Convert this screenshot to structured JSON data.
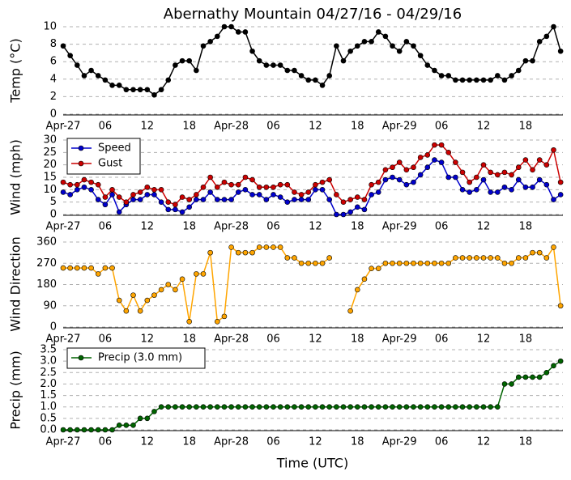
{
  "chart_data": [
    {
      "type": "line",
      "title": "Abernathy Mountain 04/27/16 - 04/29/16",
      "y_label": "Temp (°C)",
      "color": "#000000",
      "grid": true,
      "categories": [
        "Apr-27",
        null,
        null,
        null,
        null,
        null,
        "06",
        null,
        null,
        null,
        null,
        null,
        "12",
        null,
        null,
        null,
        null,
        null,
        "18",
        null,
        null,
        null,
        null,
        null,
        "Apr-28",
        null,
        null,
        null,
        null,
        null,
        "06",
        null,
        null,
        null,
        null,
        null,
        "12",
        null,
        null,
        null,
        null,
        null,
        "18",
        null,
        null,
        null,
        null,
        null,
        "Apr-29",
        null,
        null,
        null,
        null,
        null,
        "06",
        null,
        null,
        null,
        null,
        null,
        "12",
        null,
        null,
        null,
        null,
        null,
        "18",
        null,
        null,
        null,
        null,
        null
      ],
      "values": [
        7.8,
        6.7,
        5.6,
        4.4,
        5.0,
        4.4,
        3.9,
        3.3,
        3.3,
        2.8,
        2.8,
        2.8,
        2.8,
        2.2,
        2.8,
        3.9,
        5.6,
        6.1,
        6.1,
        5.0,
        7.8,
        8.3,
        8.9,
        10.0,
        10.0,
        9.4,
        9.4,
        7.2,
        6.1,
        5.6,
        5.6,
        5.6,
        5.0,
        5.0,
        4.4,
        3.9,
        3.9,
        3.3,
        4.4,
        7.8,
        6.1,
        7.2,
        7.8,
        8.3,
        8.3,
        9.4,
        8.9,
        7.8,
        7.2,
        8.3,
        7.8,
        6.7,
        5.6,
        5.0,
        4.4,
        4.4,
        3.9,
        3.9,
        3.9,
        3.9,
        3.9,
        3.9,
        4.4,
        3.9,
        4.4,
        5.0,
        6.1,
        6.1,
        8.3,
        8.9,
        10.0,
        7.2
      ],
      "ylim": [
        0,
        10
      ],
      "yticks": [
        0,
        2,
        4,
        6,
        8,
        10
      ]
    },
    {
      "type": "line",
      "y_label": "Wind (mph)",
      "grid": true,
      "legend": "upper left",
      "categories": [
        "Apr-27",
        null,
        null,
        null,
        null,
        null,
        "06",
        null,
        null,
        null,
        null,
        null,
        "12",
        null,
        null,
        null,
        null,
        null,
        "18",
        null,
        null,
        null,
        null,
        null,
        "Apr-28",
        null,
        null,
        null,
        null,
        null,
        "06",
        null,
        null,
        null,
        null,
        null,
        "12",
        null,
        null,
        null,
        null,
        null,
        "18",
        null,
        null,
        null,
        null,
        null,
        "Apr-29",
        null,
        null,
        null,
        null,
        null,
        "06",
        null,
        null,
        null,
        null,
        null,
        "12",
        null,
        null,
        null,
        null,
        null,
        "18",
        null,
        null,
        null,
        null,
        null
      ],
      "series": [
        {
          "name": "Speed",
          "color": "#0000cc",
          "values": [
            9,
            8,
            10,
            11,
            10,
            6,
            4,
            8,
            1,
            4,
            6,
            6,
            8,
            8,
            5,
            2,
            2,
            1,
            3,
            6,
            6,
            9,
            6,
            6,
            6,
            9,
            10,
            8,
            8,
            6,
            8,
            7,
            5,
            6,
            6,
            6,
            10,
            10,
            6,
            0,
            0,
            1,
            3,
            2,
            8,
            9,
            14,
            15,
            14,
            12,
            13,
            16,
            19,
            22,
            21,
            15,
            15,
            10,
            9,
            10,
            14,
            9,
            9,
            11,
            10,
            14,
            11,
            11,
            14,
            12,
            6,
            8
          ]
        },
        {
          "name": "Gust",
          "color": "#cc0000",
          "values": [
            13,
            12,
            12,
            14,
            13,
            12,
            7,
            10,
            7,
            5,
            8,
            9,
            11,
            10,
            10,
            5,
            4,
            7,
            6,
            8,
            11,
            15,
            11,
            13,
            12,
            12,
            15,
            14,
            11,
            11,
            11,
            12,
            12,
            9,
            8,
            9,
            12,
            13,
            14,
            8,
            5,
            6,
            7,
            6,
            12,
            13,
            18,
            19,
            21,
            18,
            19,
            23,
            24,
            28,
            28,
            25,
            21,
            17,
            13,
            15,
            20,
            17,
            16,
            17,
            16,
            19,
            22,
            18,
            22,
            20,
            26,
            13
          ]
        }
      ],
      "ylim": [
        0,
        30
      ],
      "yticks": [
        0,
        5,
        10,
        15,
        20,
        25,
        30
      ]
    },
    {
      "type": "line",
      "y_label": "Wind Direction",
      "color": "#ffa500",
      "grid": true,
      "categories": [
        "Apr-27",
        null,
        null,
        null,
        null,
        null,
        "06",
        null,
        null,
        null,
        null,
        null,
        "12",
        null,
        null,
        null,
        null,
        null,
        "18",
        null,
        null,
        null,
        null,
        null,
        "Apr-28",
        null,
        null,
        null,
        null,
        null,
        "06",
        null,
        null,
        null,
        null,
        null,
        "12",
        null,
        null,
        null,
        null,
        null,
        "18",
        null,
        null,
        null,
        null,
        null,
        "Apr-29",
        null,
        null,
        null,
        null,
        null,
        "06",
        null,
        null,
        null,
        null,
        null,
        "12",
        null,
        null,
        null,
        null,
        null,
        "18",
        null,
        null,
        null,
        null,
        null
      ],
      "values": [
        250,
        250,
        250,
        250,
        250,
        225,
        250,
        250,
        113,
        68,
        135,
        68,
        113,
        135,
        158,
        180,
        158,
        203,
        23,
        225,
        225,
        315,
        23,
        45,
        338,
        315,
        315,
        315,
        338,
        338,
        338,
        338,
        293,
        293,
        270,
        270,
        270,
        270,
        293,
        null,
        null,
        68,
        158,
        203,
        248,
        248,
        270,
        270,
        270,
        270,
        270,
        270,
        270,
        270,
        270,
        270,
        293,
        293,
        293,
        293,
        293,
        293,
        293,
        270,
        270,
        293,
        293,
        315,
        315,
        293,
        338,
        90
      ],
      "ylim": [
        0,
        360
      ],
      "yticks": [
        0,
        90,
        180,
        270,
        360
      ]
    },
    {
      "type": "line",
      "y_label": "Precip (mm)",
      "x_label": "Time (UTC)",
      "grid": true,
      "legend": "upper left",
      "categories": [
        "Apr-27",
        null,
        null,
        null,
        null,
        null,
        "06",
        null,
        null,
        null,
        null,
        null,
        "12",
        null,
        null,
        null,
        null,
        null,
        "18",
        null,
        null,
        null,
        null,
        null,
        "Apr-28",
        null,
        null,
        null,
        null,
        null,
        "06",
        null,
        null,
        null,
        null,
        null,
        "12",
        null,
        null,
        null,
        null,
        null,
        "18",
        null,
        null,
        null,
        null,
        null,
        "Apr-29",
        null,
        null,
        null,
        null,
        null,
        "06",
        null,
        null,
        null,
        null,
        null,
        "12",
        null,
        null,
        null,
        null,
        null,
        "18",
        null,
        null,
        null,
        null,
        null
      ],
      "series": [
        {
          "name": "Precip (3.0 mm)",
          "color": "#006400",
          "values": [
            0,
            0,
            0,
            0,
            0,
            0,
            0,
            0,
            0.2,
            0.2,
            0.2,
            0.5,
            0.5,
            0.8,
            1,
            1,
            1,
            1,
            1,
            1,
            1,
            1,
            1,
            1,
            1,
            1,
            1,
            1,
            1,
            1,
            1,
            1,
            1,
            1,
            1,
            1,
            1,
            1,
            1,
            1,
            1,
            1,
            1,
            1,
            1,
            1,
            1,
            1,
            1,
            1,
            1,
            1,
            1,
            1,
            1,
            1,
            1,
            1,
            1,
            1,
            1,
            1,
            1,
            2,
            2,
            2.3,
            2.3,
            2.3,
            2.3,
            2.5,
            2.8,
            3
          ]
        }
      ],
      "ylim": [
        0,
        3.5
      ],
      "yticks": [
        {
          "value": 0,
          "label": "0.0"
        },
        {
          "value": 0.5,
          "label": "0.5"
        },
        {
          "value": 1,
          "label": "1.0"
        },
        {
          "value": 1.5,
          "label": "1.5"
        },
        {
          "value": 2,
          "label": "2.0"
        },
        {
          "value": 2.5,
          "label": "2.5"
        },
        {
          "value": 3,
          "label": "3.0"
        },
        {
          "value": 3.5,
          "label": "3.5"
        }
      ]
    }
  ]
}
